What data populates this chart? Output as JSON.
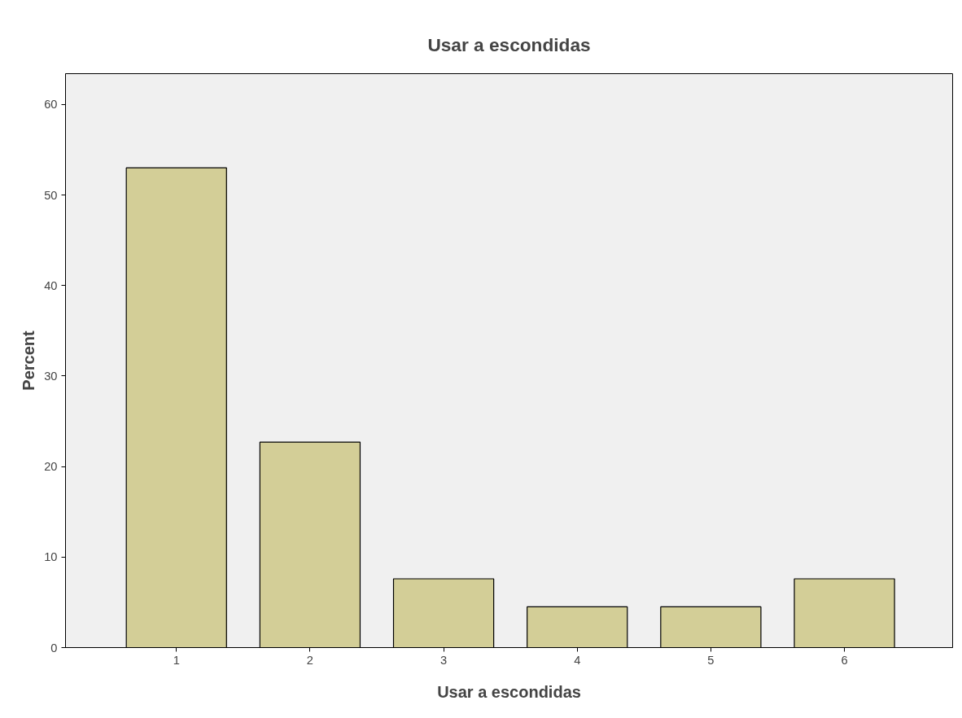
{
  "chart_data": {
    "type": "bar",
    "title": "Usar a escondidas",
    "xlabel": "Usar a escondidas",
    "ylabel": "Percent",
    "categories": [
      "1",
      "2",
      "3",
      "4",
      "5",
      "6"
    ],
    "values": [
      53.0,
      22.7,
      7.6,
      4.5,
      4.5,
      7.6
    ],
    "color": "#d3ce97",
    "ylim": [
      0,
      63.4
    ],
    "yticks": [
      0,
      10,
      20,
      30,
      40,
      50,
      60
    ],
    "grid": false
  }
}
